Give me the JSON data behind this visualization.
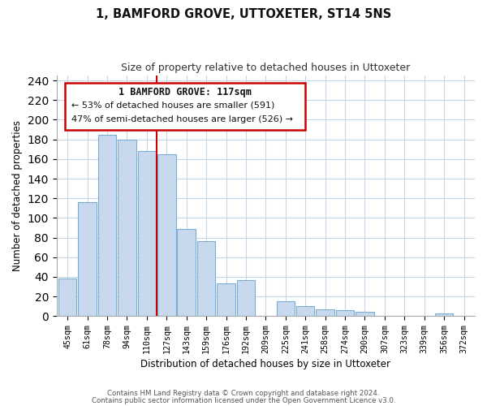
{
  "title": "1, BAMFORD GROVE, UTTOXETER, ST14 5NS",
  "subtitle": "Size of property relative to detached houses in Uttoxeter",
  "xlabel": "Distribution of detached houses by size in Uttoxeter",
  "ylabel": "Number of detached properties",
  "bar_labels": [
    "45sqm",
    "61sqm",
    "78sqm",
    "94sqm",
    "110sqm",
    "127sqm",
    "143sqm",
    "159sqm",
    "176sqm",
    "192sqm",
    "209sqm",
    "225sqm",
    "241sqm",
    "258sqm",
    "274sqm",
    "290sqm",
    "307sqm",
    "323sqm",
    "339sqm",
    "356sqm",
    "372sqm"
  ],
  "bar_values": [
    38,
    116,
    185,
    180,
    168,
    165,
    89,
    76,
    33,
    37,
    0,
    15,
    10,
    7,
    6,
    4,
    0,
    0,
    0,
    3,
    0
  ],
  "bar_color": "#c8d9ed",
  "bar_edge_color": "#7aadd4",
  "highlight_line_color": "#cc0000",
  "annotation_title": "1 BAMFORD GROVE: 117sqm",
  "annotation_line1": "← 53% of detached houses are smaller (591)",
  "annotation_line2": "47% of semi-detached houses are larger (526) →",
  "ylim": [
    0,
    245
  ],
  "yticks": [
    0,
    20,
    40,
    60,
    80,
    100,
    120,
    140,
    160,
    180,
    200,
    220,
    240
  ],
  "footer_line1": "Contains HM Land Registry data © Crown copyright and database right 2024.",
  "footer_line2": "Contains public sector information licensed under the Open Government Licence v3.0.",
  "bg_color": "#ffffff",
  "grid_color": "#c5d8ea"
}
